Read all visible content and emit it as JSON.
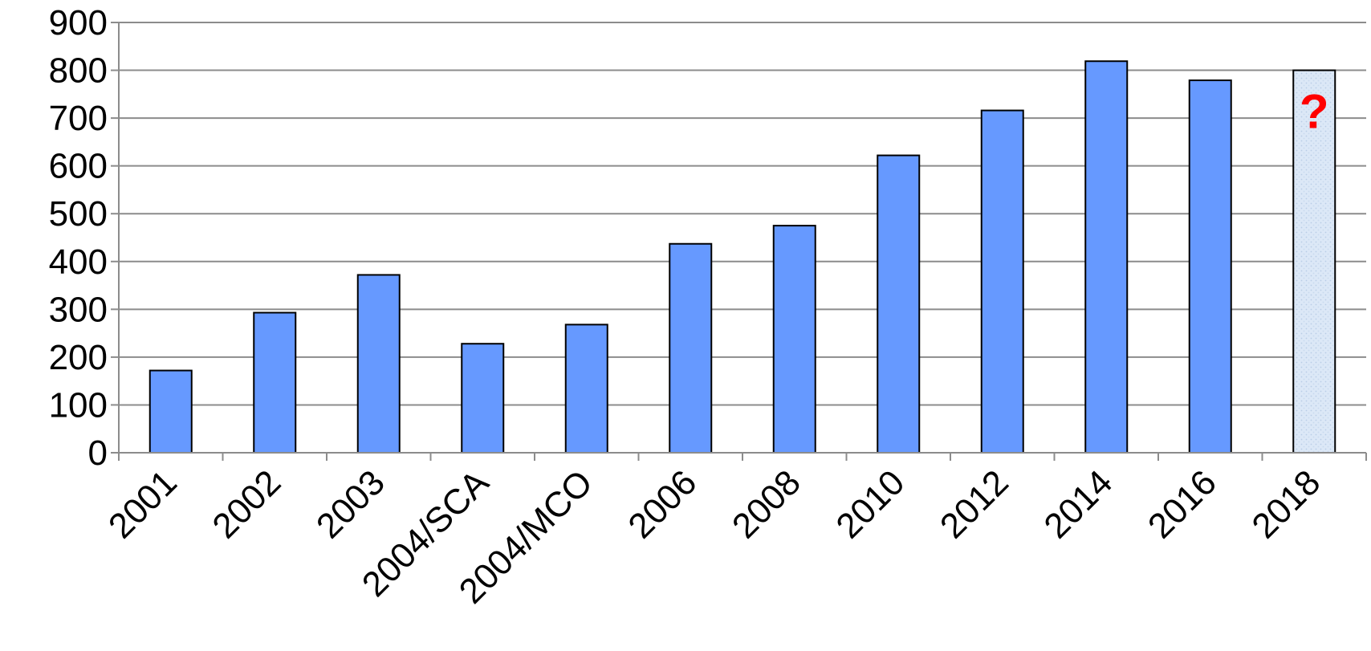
{
  "chart_data": {
    "type": "bar",
    "title": "",
    "xlabel": "",
    "ylabel": "",
    "ylim": [
      0,
      900
    ],
    "yticks": [
      0,
      100,
      200,
      300,
      400,
      500,
      600,
      700,
      800,
      900
    ],
    "grid": true,
    "legend": "none",
    "categories": [
      "2001",
      "2002",
      "2003",
      "2004/SCA",
      "2004/MCO",
      "2006",
      "2008",
      "2010",
      "2012",
      "2014",
      "2016",
      "2018"
    ],
    "values": [
      172,
      293,
      372,
      228,
      268,
      437,
      475,
      622,
      716,
      819,
      779,
      800
    ],
    "bar_styles": [
      "solid",
      "solid",
      "solid",
      "solid",
      "solid",
      "solid",
      "solid",
      "solid",
      "solid",
      "solid",
      "solid",
      "dotted"
    ],
    "annotations": [
      {
        "category": "2018",
        "text": "?",
        "color": "#ff0000"
      }
    ],
    "colors": {
      "bar": "#6699ff",
      "bar_placeholder": "#dce8f7",
      "bar_outline": "#000000",
      "grid": "#8c8c8c",
      "annotation": "#ff0000"
    }
  }
}
